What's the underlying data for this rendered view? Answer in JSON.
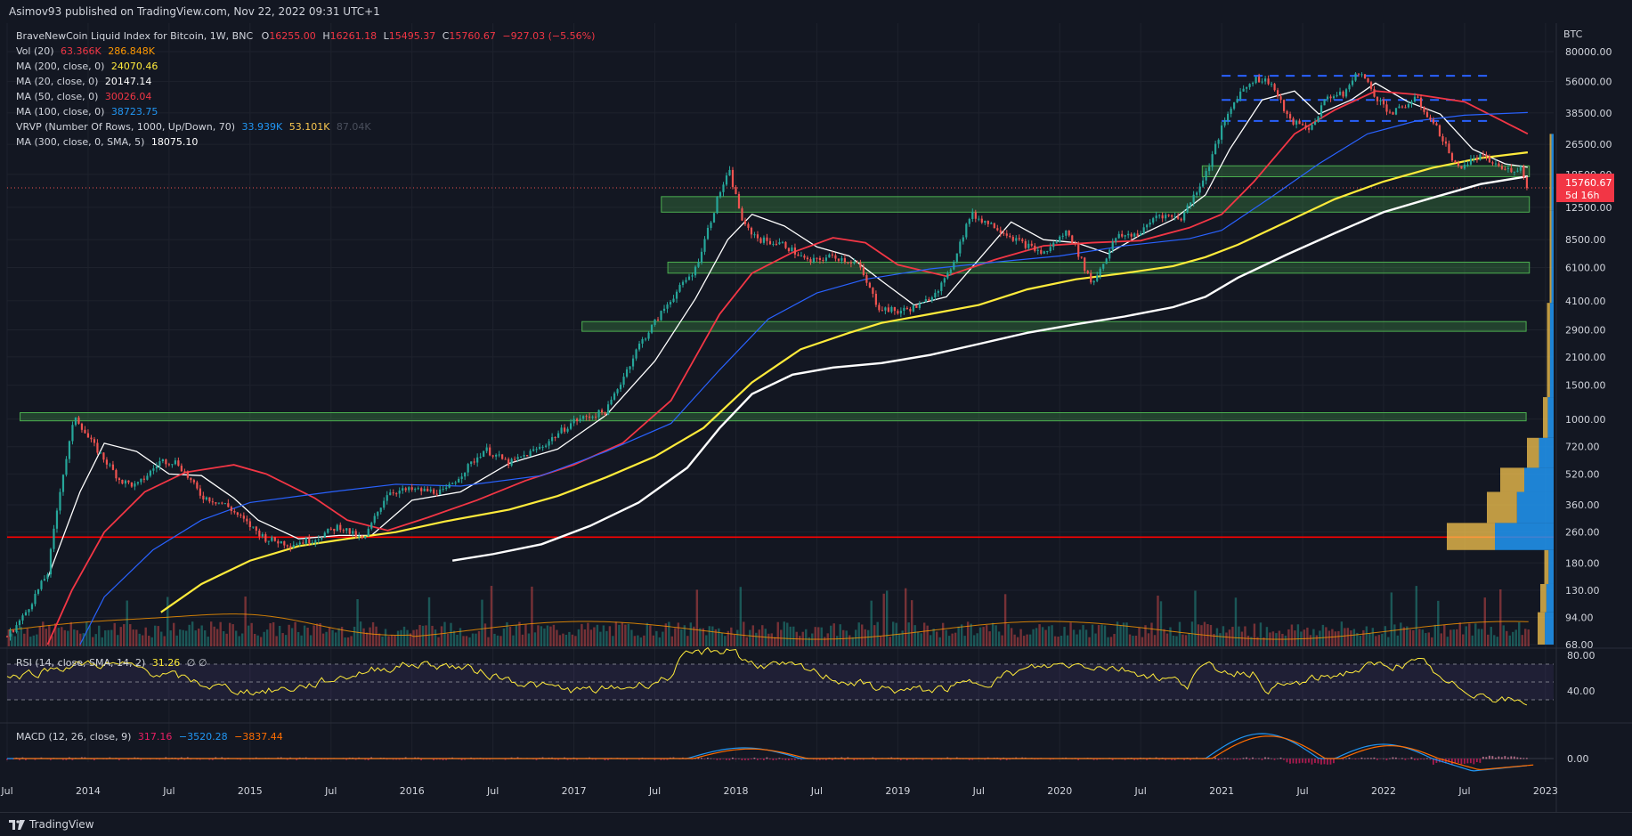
{
  "header": {
    "publisher": "Asimov93 published on TradingView.com, Nov 22, 2022 09:31 UTC+1"
  },
  "footer": {
    "brand": "TradingView"
  },
  "legend": {
    "symbol": "BraveNewCoin Liquid Index for Bitcoin, 1W, BNC",
    "o_label": "O",
    "o": "16255.00",
    "h_label": "H",
    "h": "16261.18",
    "l_label": "L",
    "l": "15495.37",
    "c_label": "C",
    "c": "15760.67",
    "change": "−927.03 (−5.56%)",
    "vol_label": "Vol (20)",
    "vol1": "63.366K",
    "vol2": "286.848K",
    "ma200_label": "MA (200, close, 0)",
    "ma200": "24070.46",
    "ma20_label": "MA (20, close, 0)",
    "ma20": "20147.14",
    "ma50_label": "MA (50, close, 0)",
    "ma50": "30026.04",
    "ma100_label": "MA (100, close, 0)",
    "ma100": "38723.75",
    "vrvp_label": "VRVP (Number Of Rows, 1000, Up/Down, 70)",
    "vrvp1": "33.939K",
    "vrvp2": "53.101K",
    "vrvp3": "87.04K",
    "ma300_label": "MA (300, close, 0, SMA, 5)",
    "ma300": "18075.10"
  },
  "rsi": {
    "label": "RSI (14, close, SMA, 14, 2)",
    "value": "31.26",
    "extra": "∅ ∅",
    "ticks": [
      "80.00",
      "40.00"
    ]
  },
  "macd": {
    "label": "MACD (12, 26, close, 9)",
    "v1": "317.16",
    "v2": "−3520.28",
    "v3": "−3837.44",
    "ticks": [
      "0.00"
    ]
  },
  "price_box": {
    "value": "15760.67",
    "countdown": "5d 16h"
  },
  "colors": {
    "bg": "#131722",
    "up": "#26a69a",
    "down": "#ef5350",
    "ma20": "#ffffff",
    "ma50": "#f23645",
    "ma100": "#2962ff",
    "ma200": "#ffeb3b",
    "ma300": "#ffffff",
    "zone": "#4caf50",
    "support": "#ff0000",
    "rsi": "#ffeb3b"
  },
  "chart_data": {
    "type": "line",
    "currency": "BTC",
    "y_scale": "log",
    "y_ticks": [
      "80000.00",
      "56000.00",
      "38500.00",
      "26500.00",
      "18500.00",
      "12500.00",
      "8500.00",
      "6100.00",
      "4100.00",
      "2900.00",
      "2100.00",
      "1500.00",
      "1000.00",
      "720.00",
      "520.00",
      "360.00",
      "260.00",
      "180.00",
      "130.00",
      "94.00",
      "68.00"
    ],
    "x_ticks": [
      "Jul",
      "2014",
      "Jul",
      "2015",
      "Jul",
      "2016",
      "Jul",
      "2017",
      "Jul",
      "2018",
      "Jul",
      "2019",
      "Jul",
      "2020",
      "Jul",
      "2021",
      "Jul",
      "2022",
      "Jul",
      "2023"
    ],
    "price": [
      [
        2013.5,
        75
      ],
      [
        2013.6,
        95
      ],
      [
        2013.75,
        160
      ],
      [
        2013.83,
        450
      ],
      [
        2013.92,
        1050
      ],
      [
        2014.0,
        800
      ],
      [
        2014.1,
        620
      ],
      [
        2014.2,
        480
      ],
      [
        2014.3,
        450
      ],
      [
        2014.45,
        610
      ],
      [
        2014.55,
        600
      ],
      [
        2014.7,
        400
      ],
      [
        2014.85,
        360
      ],
      [
        2015.0,
        280
      ],
      [
        2015.1,
        240
      ],
      [
        2015.25,
        225
      ],
      [
        2015.4,
        240
      ],
      [
        2015.55,
        280
      ],
      [
        2015.7,
        235
      ],
      [
        2015.85,
        420
      ],
      [
        2016.0,
        430
      ],
      [
        2016.2,
        420
      ],
      [
        2016.45,
        700
      ],
      [
        2016.6,
        590
      ],
      [
        2016.8,
        720
      ],
      [
        2017.0,
        980
      ],
      [
        2017.2,
        1100
      ],
      [
        2017.4,
        2400
      ],
      [
        2017.6,
        4200
      ],
      [
        2017.75,
        6000
      ],
      [
        2017.9,
        15000
      ],
      [
        2017.96,
        19000
      ],
      [
        2018.05,
        10000
      ],
      [
        2018.15,
        8500
      ],
      [
        2018.3,
        8000
      ],
      [
        2018.45,
        6500
      ],
      [
        2018.6,
        7000
      ],
      [
        2018.75,
        6400
      ],
      [
        2018.88,
        3800
      ],
      [
        2019.0,
        3600
      ],
      [
        2019.15,
        3900
      ],
      [
        2019.3,
        5300
      ],
      [
        2019.45,
        11500
      ],
      [
        2019.6,
        10000
      ],
      [
        2019.75,
        8300
      ],
      [
        2019.9,
        7200
      ],
      [
        2020.05,
        9500
      ],
      [
        2020.2,
        5000
      ],
      [
        2020.35,
        8800
      ],
      [
        2020.5,
        9200
      ],
      [
        2020.6,
        11500
      ],
      [
        2020.75,
        11000
      ],
      [
        2020.9,
        18500
      ],
      [
        2021.0,
        32000
      ],
      [
        2021.1,
        48000
      ],
      [
        2021.2,
        58000
      ],
      [
        2021.3,
        56000
      ],
      [
        2021.42,
        35000
      ],
      [
        2021.55,
        32000
      ],
      [
        2021.65,
        47000
      ],
      [
        2021.75,
        48000
      ],
      [
        2021.85,
        64000
      ],
      [
        2021.95,
        47000
      ],
      [
        2022.05,
        38000
      ],
      [
        2022.2,
        46000
      ],
      [
        2022.35,
        30000
      ],
      [
        2022.45,
        20000
      ],
      [
        2022.6,
        23000
      ],
      [
        2022.75,
        19500
      ],
      [
        2022.85,
        20000
      ],
      [
        2022.89,
        15760
      ]
    ],
    "series": [
      {
        "name": "MA (20, close, 0)",
        "values": [
          [
            2013.75,
            150
          ],
          [
            2013.95,
            420
          ],
          [
            2014.1,
            750
          ],
          [
            2014.3,
            680
          ],
          [
            2014.5,
            520
          ],
          [
            2014.7,
            510
          ],
          [
            2014.9,
            390
          ],
          [
            2015.05,
            300
          ],
          [
            2015.3,
            240
          ],
          [
            2015.55,
            250
          ],
          [
            2015.75,
            250
          ],
          [
            2016.0,
            380
          ],
          [
            2016.3,
            420
          ],
          [
            2016.6,
            590
          ],
          [
            2016.9,
            700
          ],
          [
            2017.2,
            1050
          ],
          [
            2017.5,
            2000
          ],
          [
            2017.75,
            4200
          ],
          [
            2017.95,
            8500
          ],
          [
            2018.1,
            11500
          ],
          [
            2018.3,
            10000
          ],
          [
            2018.5,
            7800
          ],
          [
            2018.7,
            7000
          ],
          [
            2018.9,
            5200
          ],
          [
            2019.1,
            3900
          ],
          [
            2019.3,
            4300
          ],
          [
            2019.55,
            7500
          ],
          [
            2019.7,
            10500
          ],
          [
            2019.9,
            8500
          ],
          [
            2020.1,
            8200
          ],
          [
            2020.3,
            7200
          ],
          [
            2020.5,
            9000
          ],
          [
            2020.7,
            10800
          ],
          [
            2020.9,
            14500
          ],
          [
            2021.05,
            25000
          ],
          [
            2021.25,
            45000
          ],
          [
            2021.45,
            50000
          ],
          [
            2021.6,
            38000
          ],
          [
            2021.8,
            45000
          ],
          [
            2021.95,
            55000
          ],
          [
            2022.15,
            44000
          ],
          [
            2022.35,
            38000
          ],
          [
            2022.55,
            25000
          ],
          [
            2022.75,
            21000
          ],
          [
            2022.89,
            20147
          ]
        ]
      },
      {
        "name": "MA (50, close, 0)",
        "values": [
          [
            2013.75,
            68
          ],
          [
            2013.9,
            130
          ],
          [
            2014.1,
            260
          ],
          [
            2014.35,
            420
          ],
          [
            2014.6,
            530
          ],
          [
            2014.9,
            580
          ],
          [
            2015.1,
            520
          ],
          [
            2015.4,
            390
          ],
          [
            2015.6,
            300
          ],
          [
            2015.85,
            265
          ],
          [
            2016.1,
            310
          ],
          [
            2016.4,
            380
          ],
          [
            2016.7,
            480
          ],
          [
            2017.0,
            580
          ],
          [
            2017.3,
            750
          ],
          [
            2017.6,
            1250
          ],
          [
            2017.9,
            3500
          ],
          [
            2018.1,
            5700
          ],
          [
            2018.35,
            7300
          ],
          [
            2018.6,
            8700
          ],
          [
            2018.8,
            8200
          ],
          [
            2019.0,
            6300
          ],
          [
            2019.3,
            5500
          ],
          [
            2019.6,
            6700
          ],
          [
            2019.9,
            7900
          ],
          [
            2020.2,
            8200
          ],
          [
            2020.5,
            8400
          ],
          [
            2020.8,
            9800
          ],
          [
            2021.0,
            11500
          ],
          [
            2021.2,
            17000
          ],
          [
            2021.45,
            30000
          ],
          [
            2021.7,
            40000
          ],
          [
            2021.95,
            50000
          ],
          [
            2022.2,
            48000
          ],
          [
            2022.5,
            44000
          ],
          [
            2022.89,
            30026
          ]
        ]
      },
      {
        "name": "MA (100, close, 0)",
        "values": [
          [
            2013.95,
            68
          ],
          [
            2014.1,
            120
          ],
          [
            2014.4,
            210
          ],
          [
            2014.7,
            300
          ],
          [
            2015.0,
            370
          ],
          [
            2015.5,
            420
          ],
          [
            2015.9,
            460
          ],
          [
            2016.3,
            450
          ],
          [
            2016.8,
            510
          ],
          [
            2017.2,
            680
          ],
          [
            2017.6,
            950
          ],
          [
            2017.9,
            1800
          ],
          [
            2018.2,
            3300
          ],
          [
            2018.5,
            4500
          ],
          [
            2018.8,
            5300
          ],
          [
            2019.2,
            6000
          ],
          [
            2019.6,
            6500
          ],
          [
            2020.0,
            7000
          ],
          [
            2020.4,
            7900
          ],
          [
            2020.8,
            8600
          ],
          [
            2021.0,
            9500
          ],
          [
            2021.3,
            14000
          ],
          [
            2021.6,
            21000
          ],
          [
            2021.9,
            30000
          ],
          [
            2022.2,
            35000
          ],
          [
            2022.5,
            37500
          ],
          [
            2022.89,
            38723
          ]
        ]
      },
      {
        "name": "MA (200, close, 0)",
        "values": [
          [
            2014.45,
            100
          ],
          [
            2014.7,
            140
          ],
          [
            2015.0,
            185
          ],
          [
            2015.3,
            220
          ],
          [
            2015.6,
            240
          ],
          [
            2015.9,
            260
          ],
          [
            2016.2,
            295
          ],
          [
            2016.6,
            340
          ],
          [
            2016.9,
            400
          ],
          [
            2017.2,
            500
          ],
          [
            2017.5,
            640
          ],
          [
            2017.8,
            900
          ],
          [
            2018.1,
            1550
          ],
          [
            2018.4,
            2300
          ],
          [
            2018.7,
            2800
          ],
          [
            2018.9,
            3150
          ],
          [
            2019.2,
            3500
          ],
          [
            2019.5,
            3900
          ],
          [
            2019.8,
            4700
          ],
          [
            2020.1,
            5300
          ],
          [
            2020.4,
            5700
          ],
          [
            2020.7,
            6200
          ],
          [
            2020.9,
            6900
          ],
          [
            2021.1,
            8000
          ],
          [
            2021.4,
            10500
          ],
          [
            2021.7,
            13800
          ],
          [
            2022.0,
            17000
          ],
          [
            2022.3,
            20000
          ],
          [
            2022.6,
            22500
          ],
          [
            2022.89,
            24070
          ]
        ]
      },
      {
        "name": "MA (300, close, 0, SMA, 5)",
        "values": [
          [
            2016.25,
            185
          ],
          [
            2016.5,
            200
          ],
          [
            2016.8,
            225
          ],
          [
            2017.1,
            280
          ],
          [
            2017.4,
            370
          ],
          [
            2017.7,
            560
          ],
          [
            2017.9,
            900
          ],
          [
            2018.1,
            1350
          ],
          [
            2018.35,
            1700
          ],
          [
            2018.6,
            1850
          ],
          [
            2018.9,
            1950
          ],
          [
            2019.2,
            2150
          ],
          [
            2019.5,
            2450
          ],
          [
            2019.8,
            2800
          ],
          [
            2020.1,
            3100
          ],
          [
            2020.4,
            3400
          ],
          [
            2020.7,
            3800
          ],
          [
            2020.9,
            4300
          ],
          [
            2021.1,
            5400
          ],
          [
            2021.4,
            7100
          ],
          [
            2021.7,
            9200
          ],
          [
            2022.0,
            11800
          ],
          [
            2022.3,
            14000
          ],
          [
            2022.6,
            16500
          ],
          [
            2022.89,
            18075
          ]
        ]
      }
    ],
    "zones": [
      [
        18000,
        20500
      ],
      [
        11800,
        14200
      ],
      [
        5700,
        6500
      ],
      [
        2850,
        3200
      ],
      [
        980,
        1080
      ]
    ],
    "resistance_dashed": [
      60000,
      45000,
      35000
    ],
    "support_line": 245
  }
}
